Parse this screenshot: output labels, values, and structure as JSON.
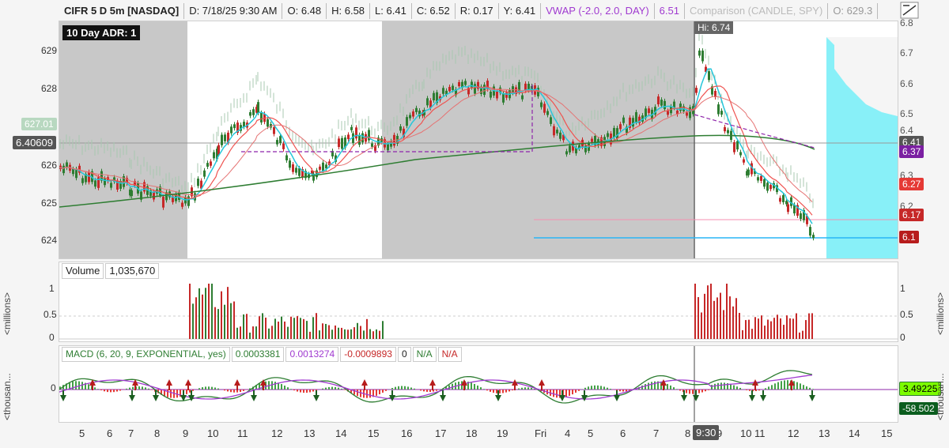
{
  "header": {
    "symbol": "CIFR 5 D 5m [NASDAQ]",
    "date": "D: 7/18/25 9:30 AM",
    "open": "O: 6.48",
    "high": "H: 6.58",
    "low": "L: 6.41",
    "close": "C: 6.52",
    "range": "R: 0.17",
    "y": "Y: 6.41",
    "vwap_label": "VWAP (-2.0, 2.0, DAY)",
    "vwap_value": "6.51",
    "comparison": "Comparison (CANDLE, SPY)",
    "comp_open": "O: 629.3"
  },
  "price_panel": {
    "adr_badge": "10 Day ADR: 1",
    "hi_label": "Hi: 6.74",
    "left_axis": [
      "629",
      "628",
      "627",
      "626",
      "625",
      "624"
    ],
    "right_axis": [
      "6.8",
      "6.7",
      "6.6",
      "6.5",
      "6.4",
      "6.3",
      "6.2"
    ],
    "left_tags": {
      "current": "6.40609",
      "comp": "627.01"
    },
    "right_tags": {
      "last": "6.41",
      "vwap": "6.37",
      "ema": "6.27",
      "r1": "6.17",
      "r2": "6.1"
    },
    "colors": {
      "green": "#2e7d32",
      "red": "#c62828",
      "purple": "#8e24aa",
      "cyan": "#00bcd4",
      "salmon": "#e57373"
    }
  },
  "volume_panel": {
    "label": "Volume",
    "value": "1,035,670",
    "axis": [
      "1",
      "0.5",
      "0"
    ],
    "unit": "<millions>"
  },
  "macd_panel": {
    "title": "MACD (6, 20, 9, EXPONENTIAL, yes)",
    "v1": "0.0003381",
    "v2": "0.0013274",
    "v3": "-0.0009893",
    "v4": "0",
    "v5": "N/A",
    "v6": "N/A",
    "axis_zero": "0",
    "right_tags": {
      "a": "3.49225",
      "b": "-58.502"
    },
    "unit": "<thousan..."
  },
  "x_axis": {
    "ticks": [
      "5",
      "6",
      "7",
      "8",
      "9",
      "10",
      "11",
      "12",
      "13",
      "14",
      "15",
      "16",
      "17",
      "18",
      "19",
      "Fri",
      "4",
      "5",
      "6",
      "7",
      "8",
      "9",
      "10",
      "11",
      "12",
      "13",
      "14",
      "15"
    ],
    "cursor": "9:30"
  }
}
